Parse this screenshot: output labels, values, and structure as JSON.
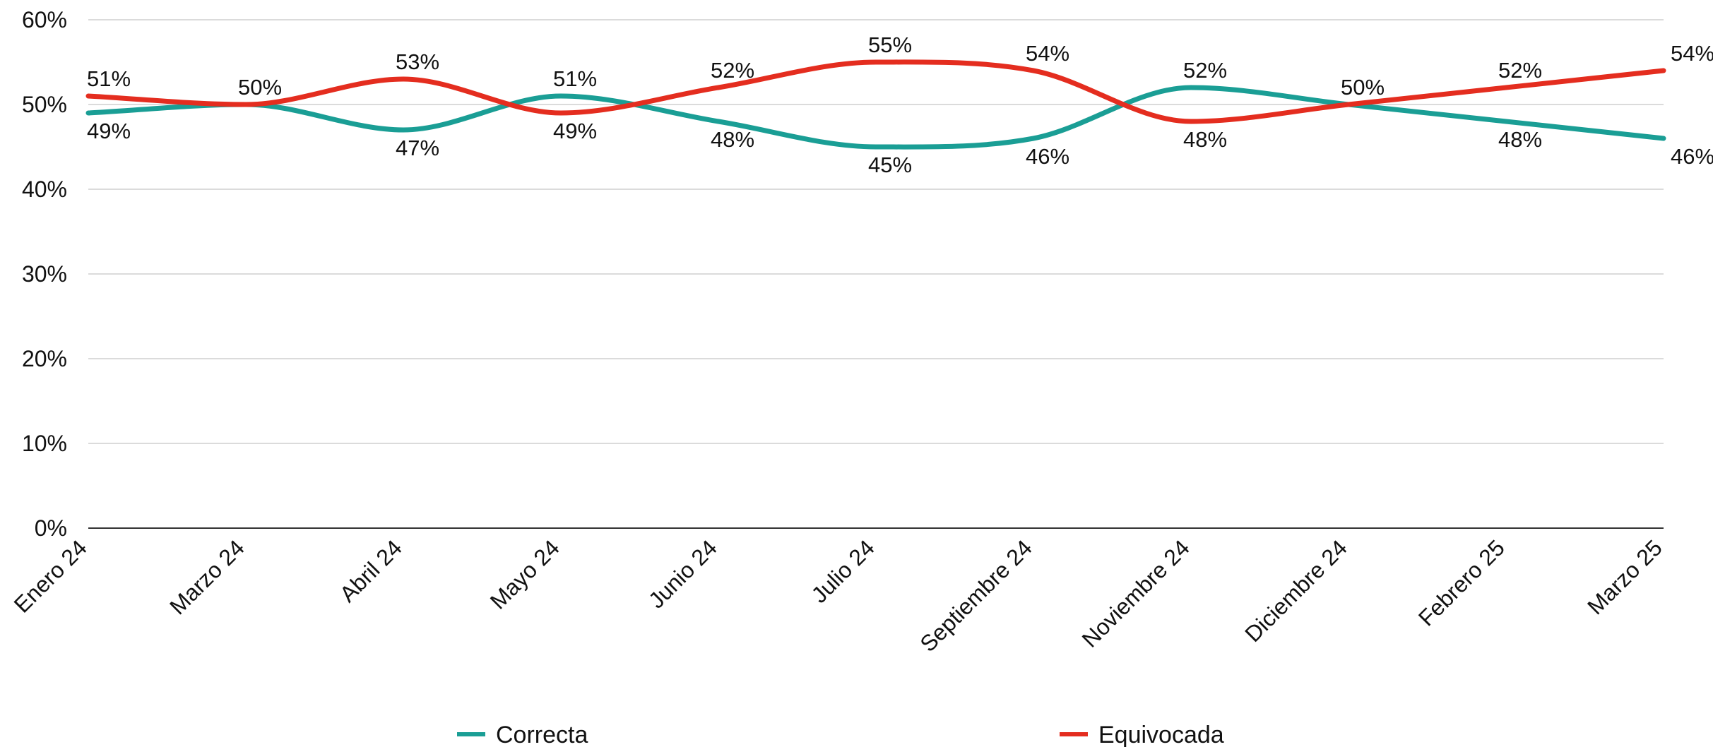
{
  "chart_data": {
    "type": "line",
    "categories": [
      "Enero 24",
      "Marzo 24",
      "Abril 24",
      "Mayo 24",
      "Junio 24",
      "Julio 24",
      "Septiembre 24",
      "Noviembre 24",
      "Diciembre 24",
      "Febrero 25",
      "Marzo 25"
    ],
    "series": [
      {
        "name": "Correcta",
        "color": "#1a9e95",
        "values": [
          49,
          50,
          47,
          51,
          48,
          45,
          46,
          52,
          50,
          48,
          46
        ],
        "labels": [
          "49%",
          "50%",
          "47%",
          "51%",
          "48%",
          "45%",
          "46%",
          "52%",
          "50%",
          "48%",
          "46%"
        ]
      },
      {
        "name": "Equivocada",
        "color": "#e42d1f",
        "values": [
          51,
          50,
          53,
          49,
          52,
          55,
          54,
          48,
          50,
          52,
          54
        ],
        "labels": [
          "51%",
          "50%",
          "53%",
          "49%",
          "52%",
          "55%",
          "54%",
          "48%",
          "50%",
          "52%",
          "54%"
        ]
      }
    ],
    "ylim": [
      0,
      60
    ],
    "yticks": [
      "0%",
      "10%",
      "20%",
      "30%",
      "40%",
      "50%",
      "60%"
    ],
    "ytick_values": [
      0,
      10,
      20,
      30,
      40,
      50,
      60
    ],
    "grid": true,
    "smooth": true,
    "legend": "bottom-center"
  }
}
